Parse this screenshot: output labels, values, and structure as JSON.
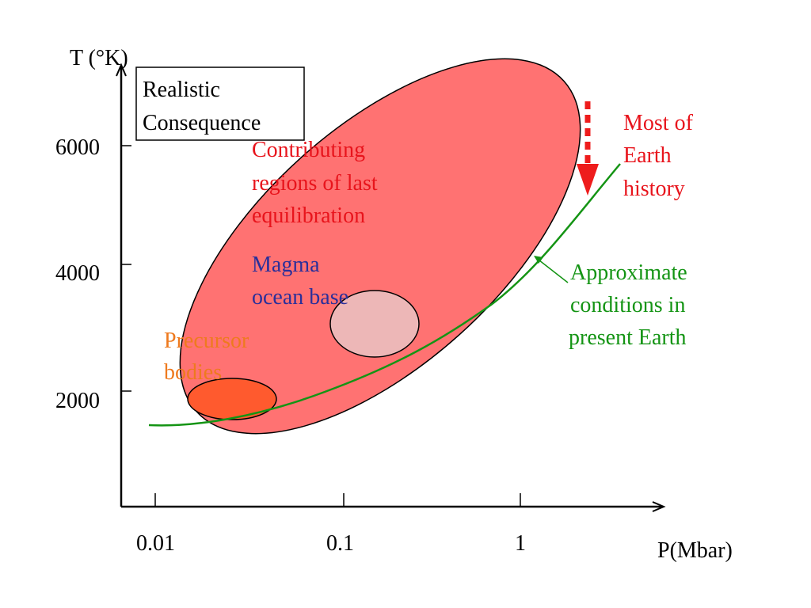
{
  "axes": {
    "y_label": "T (°K)",
    "x_label": "P(Mbar)",
    "y_ticks": [
      "6000",
      "4000",
      "2000"
    ],
    "x_ticks": [
      "0.01",
      "0.1",
      "1"
    ]
  },
  "boxed_label": {
    "line1": "Realistic",
    "line2": "Consequence"
  },
  "regions": {
    "contributing": {
      "lines": [
        "Contributing",
        "regions of last",
        "equilibration"
      ],
      "fill": "#ff7272",
      "text_color": "#e8141c"
    },
    "magma": {
      "lines": [
        "Magma",
        "ocean base"
      ],
      "fill": "#dff1f1",
      "text_color": "#2a2f9a"
    },
    "precursor": {
      "lines": [
        "Precursor",
        "bodies"
      ],
      "fill": "#ff5a2e",
      "text_color": "#ee7a1e"
    }
  },
  "history": {
    "lines": [
      "Most of",
      "Earth",
      "history"
    ],
    "color": "#e8141c"
  },
  "present_earth": {
    "lines": [
      "Approximate",
      "conditions in",
      "present Earth"
    ],
    "color": "#149414"
  }
}
